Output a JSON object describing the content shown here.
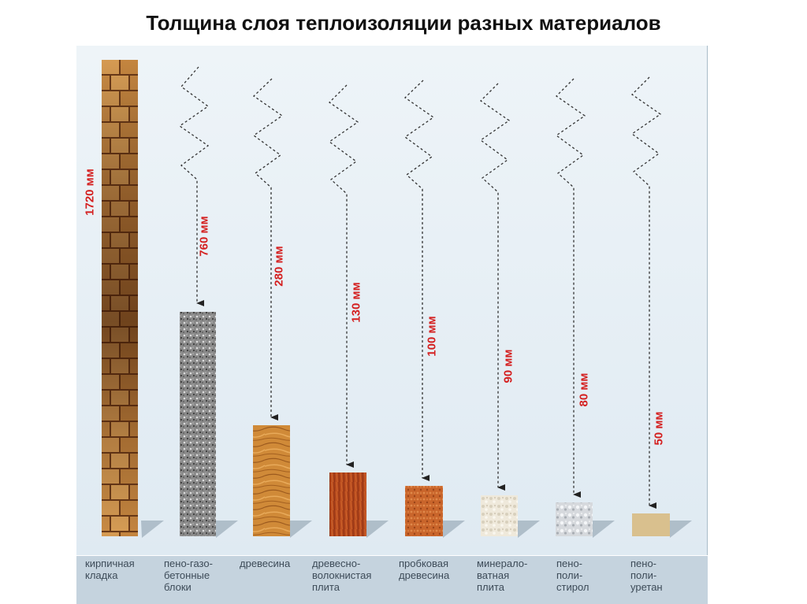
{
  "title": "Толщина слоя теплоизоляции разных материалов",
  "materials": [
    {
      "name": "кирпичная\nкладка",
      "thickness": "1720 мм"
    },
    {
      "name": "пено-газо-\nбетонные\nблоки",
      "thickness": "760 мм"
    },
    {
      "name": "древесина",
      "thickness": "280 мм"
    },
    {
      "name": "древесно-\nволокнистая\nплита",
      "thickness": "130 мм"
    },
    {
      "name": "пробковая\nдревесина",
      "thickness": "100 мм"
    },
    {
      "name": "минерало-\nватная\nплита",
      "thickness": "90 мм"
    },
    {
      "name": "пено-\nполи-\nстирол",
      "thickness": "80 мм"
    },
    {
      "name": "пено-\nполи-\nуретан",
      "thickness": "50 мм"
    }
  ],
  "colors": {
    "dimension_text": "#d42020",
    "brick": "#b97a3a",
    "aerated_concrete": "#8e8e8e",
    "wood": "#cf8a3a",
    "fiberboard": "#b0471f",
    "cork": "#c0602a",
    "mineral_wool": "#ece6d7",
    "polystyrene": "#d3d6da",
    "polyurethane": "#d9c08e"
  }
}
